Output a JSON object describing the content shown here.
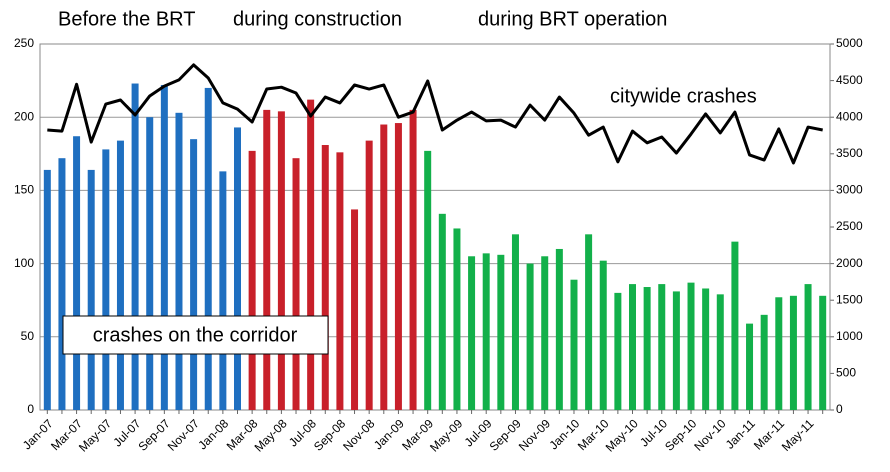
{
  "chart_data": {
    "type": "bar",
    "categories": [
      "Jan-07",
      null,
      "Mar-07",
      null,
      "May-07",
      null,
      "Jul-07",
      null,
      "Sep-07",
      null,
      "Nov-07",
      null,
      "Jan-08",
      null,
      "Mar-08",
      null,
      "May-08",
      null,
      "Jul-08",
      null,
      "Sep-08",
      null,
      "Nov-08",
      null,
      "Jan-09",
      null,
      "Mar-09",
      null,
      "May-09",
      null,
      "Jul-09",
      null,
      "Sep-09",
      null,
      "Nov-09",
      null,
      "Jan-10",
      null,
      "Mar-10",
      null,
      "May-10",
      null,
      "Jul-10",
      null,
      "Sep-10",
      null,
      "Nov-10",
      null,
      "Jan-11",
      null,
      "Mar-11",
      null,
      "May-11",
      null
    ],
    "series": [
      {
        "name": "Before the BRT",
        "color": "#1f6fc0",
        "values": [
          164,
          172,
          187,
          164,
          178,
          184,
          223,
          200,
          222,
          203,
          185,
          220,
          163,
          193,
          null,
          null,
          null,
          null,
          null,
          null,
          null,
          null,
          null,
          null,
          null,
          null,
          null,
          null,
          null,
          null,
          null,
          null,
          null,
          null,
          null,
          null,
          null,
          null,
          null,
          null,
          null,
          null,
          null,
          null,
          null,
          null,
          null,
          null,
          null,
          null,
          null,
          null,
          null,
          null
        ]
      },
      {
        "name": "during construction",
        "color": "#c8202a",
        "values": [
          null,
          null,
          null,
          null,
          null,
          null,
          null,
          null,
          null,
          null,
          null,
          null,
          null,
          null,
          177,
          205,
          204,
          172,
          212,
          181,
          176,
          137,
          184,
          195,
          196,
          205,
          null,
          null,
          null,
          null,
          null,
          null,
          null,
          null,
          null,
          null,
          null,
          null,
          null,
          null,
          null,
          null,
          null,
          null,
          null,
          null,
          null,
          null,
          null,
          null,
          null,
          null,
          null,
          null
        ]
      },
      {
        "name": "during BRT operation",
        "color": "#12b04a",
        "values": [
          null,
          null,
          null,
          null,
          null,
          null,
          null,
          null,
          null,
          null,
          null,
          null,
          null,
          null,
          null,
          null,
          null,
          null,
          null,
          null,
          null,
          null,
          null,
          null,
          null,
          null,
          177,
          134,
          124,
          105,
          107,
          106,
          120,
          100,
          105,
          110,
          89,
          120,
          102,
          80,
          86,
          84,
          86,
          81,
          87,
          83,
          79,
          115,
          59,
          65,
          77,
          78,
          86,
          78
        ]
      },
      {
        "name": "citywide crashes",
        "color": "#000000",
        "type": "line",
        "axis": "y2",
        "values": [
          3825,
          3810,
          4450,
          3660,
          4180,
          4235,
          4030,
          4290,
          4425,
          4510,
          4715,
          4535,
          4195,
          4110,
          3935,
          4385,
          4410,
          4330,
          4015,
          4275,
          4195,
          4440,
          4385,
          4440,
          4000,
          4070,
          4495,
          3825,
          3960,
          4070,
          3950,
          3960,
          3865,
          4165,
          3960,
          4275,
          4055,
          3755,
          3865,
          3390,
          3810,
          3650,
          3730,
          3510,
          3770,
          4045,
          3785,
          4070,
          3485,
          3415,
          3840,
          3375,
          3865,
          3825
        ]
      }
    ],
    "annotation": "crashes on the corridor",
    "ylim": [
      0,
      250
    ],
    "yticks": [
      0,
      50,
      100,
      150,
      200,
      250
    ],
    "y2lim": [
      0,
      5000
    ],
    "y2ticks": [
      0,
      500,
      1000,
      1500,
      2000,
      2500,
      3000,
      3500,
      4000,
      4500,
      5000
    ],
    "grid": true
  }
}
